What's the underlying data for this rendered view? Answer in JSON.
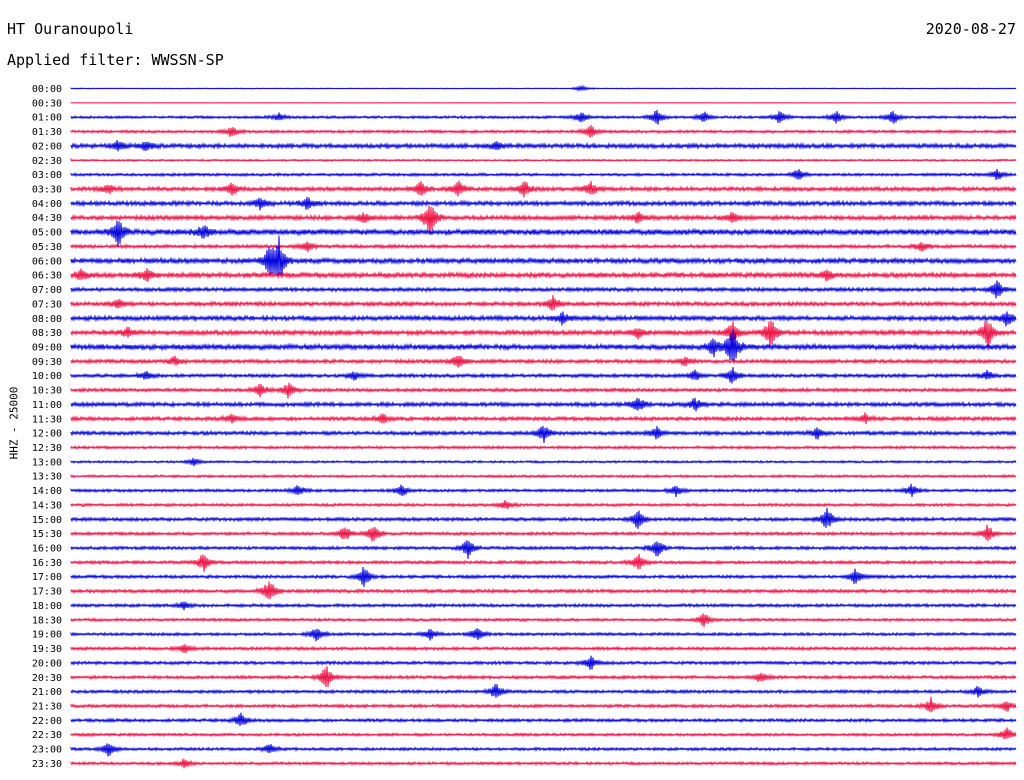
{
  "header": {
    "station": "HT Ouranoupoli",
    "date": "2020-08-27",
    "filter": "Applied filter: WWSSN-SP"
  },
  "chart_data": {
    "type": "line",
    "title": "HT Ouranoupoli",
    "subtitle": "Applied filter: WWSSN-SP",
    "date": "2020-08-27",
    "ylabel": "HHZ - 25000",
    "colors": [
      "#0000dd",
      "#ee1144"
    ],
    "row_labels": [
      "00:00",
      "00:30",
      "01:00",
      "01:30",
      "02:00",
      "02:30",
      "03:00",
      "03:30",
      "04:00",
      "04:30",
      "05:00",
      "05:30",
      "06:00",
      "06:30",
      "07:00",
      "07:30",
      "08:00",
      "08:30",
      "09:00",
      "09:30",
      "10:00",
      "10:30",
      "11:00",
      "11:30",
      "12:00",
      "12:30",
      "13:00",
      "13:30",
      "14:00",
      "14:30",
      "15:00",
      "15:30",
      "16:00",
      "16:30",
      "17:00",
      "17:30",
      "18:00",
      "18:30",
      "19:00",
      "19:30",
      "20:00",
      "20:30",
      "21:00",
      "21:30",
      "22:00",
      "22:30",
      "23:00",
      "23:30"
    ],
    "noise_level": [
      0.3,
      0.1,
      0.8,
      0.9,
      1.4,
      0.6,
      0.9,
      1.3,
      1.4,
      1.4,
      1.8,
      1.1,
      1.6,
      1.6,
      1.2,
      1.3,
      1.5,
      1.5,
      1.7,
      1.2,
      1.1,
      1.1,
      1.3,
      1.2,
      1.2,
      0.9,
      0.7,
      0.8,
      0.9,
      0.9,
      1.1,
      1.0,
      1.0,
      1.0,
      1.0,
      1.1,
      1.0,
      0.9,
      0.9,
      1.0,
      1.0,
      1.0,
      1.0,
      1.0,
      1.0,
      0.9,
      0.9,
      0.9
    ],
    "events": [
      [
        [
          0.54,
          3
        ]
      ],
      [],
      [
        [
          0.22,
          4
        ],
        [
          0.54,
          6
        ],
        [
          0.62,
          8
        ],
        [
          0.67,
          6
        ],
        [
          0.75,
          7
        ],
        [
          0.81,
          8
        ],
        [
          0.87,
          8
        ]
      ],
      [
        [
          0.17,
          6
        ],
        [
          0.55,
          7
        ]
      ],
      [
        [
          0.05,
          6
        ],
        [
          0.08,
          5
        ],
        [
          0.45,
          4
        ]
      ],
      [],
      [
        [
          0.77,
          7
        ],
        [
          0.98,
          6
        ]
      ],
      [
        [
          0.04,
          5
        ],
        [
          0.17,
          7
        ],
        [
          0.37,
          8
        ],
        [
          0.41,
          9
        ],
        [
          0.48,
          9
        ],
        [
          0.55,
          7
        ]
      ],
      [
        [
          0.2,
          6
        ],
        [
          0.25,
          7
        ]
      ],
      [
        [
          0.31,
          6
        ],
        [
          0.38,
          20
        ],
        [
          0.6,
          6
        ],
        [
          0.7,
          6
        ]
      ],
      [
        [
          0.05,
          6
        ],
        [
          0.05,
          9
        ],
        [
          0.14,
          8
        ]
      ],
      [
        [
          0.25,
          6
        ],
        [
          0.9,
          6
        ]
      ],
      [
        [
          0.21,
          17
        ],
        [
          0.22,
          22
        ]
      ],
      [
        [
          0.01,
          6
        ],
        [
          0.08,
          7
        ],
        [
          0.8,
          6
        ]
      ],
      [
        [
          0.98,
          10
        ]
      ],
      [
        [
          0.05,
          5
        ],
        [
          0.51,
          8
        ]
      ],
      [
        [
          0.52,
          7
        ],
        [
          0.99,
          9
        ]
      ],
      [
        [
          0.06,
          5
        ],
        [
          0.6,
          6
        ],
        [
          0.7,
          12
        ],
        [
          0.74,
          16
        ],
        [
          0.97,
          18
        ]
      ],
      [
        [
          0.7,
          22
        ],
        [
          0.68,
          10
        ]
      ],
      [
        [
          0.11,
          5
        ],
        [
          0.41,
          8
        ],
        [
          0.65,
          5
        ]
      ],
      [
        [
          0.08,
          5
        ],
        [
          0.3,
          5
        ],
        [
          0.66,
          6
        ],
        [
          0.7,
          10
        ],
        [
          0.97,
          5
        ]
      ],
      [
        [
          0.2,
          8
        ],
        [
          0.23,
          8
        ]
      ],
      [
        [
          0.6,
          8
        ],
        [
          0.66,
          7
        ]
      ],
      [
        [
          0.17,
          5
        ],
        [
          0.33,
          5
        ],
        [
          0.84,
          5
        ]
      ],
      [
        [
          0.5,
          10
        ],
        [
          0.62,
          7
        ],
        [
          0.79,
          6
        ]
      ],
      [],
      [
        [
          0.13,
          4
        ]
      ],
      [],
      [
        [
          0.24,
          6
        ],
        [
          0.35,
          7
        ],
        [
          0.64,
          6
        ],
        [
          0.89,
          7
        ]
      ],
      [
        [
          0.46,
          5
        ]
      ],
      [
        [
          0.6,
          11
        ],
        [
          0.8,
          12
        ]
      ],
      [
        [
          0.29,
          8
        ],
        [
          0.32,
          10
        ],
        [
          0.97,
          9
        ]
      ],
      [
        [
          0.42,
          11
        ],
        [
          0.62,
          11
        ]
      ],
      [
        [
          0.14,
          10
        ],
        [
          0.6,
          9
        ]
      ],
      [
        [
          0.31,
          11
        ],
        [
          0.83,
          9
        ]
      ],
      [
        [
          0.21,
          13
        ]
      ],
      [
        [
          0.12,
          4
        ]
      ],
      [
        [
          0.67,
          8
        ]
      ],
      [
        [
          0.26,
          8
        ],
        [
          0.38,
          6
        ],
        [
          0.43,
          7
        ]
      ],
      [
        [
          0.12,
          5
        ]
      ],
      [
        [
          0.55,
          7
        ]
      ],
      [
        [
          0.27,
          14
        ],
        [
          0.73,
          6
        ]
      ],
      [
        [
          0.45,
          9
        ],
        [
          0.96,
          6
        ]
      ],
      [
        [
          0.91,
          9
        ],
        [
          0.99,
          6
        ]
      ],
      [
        [
          0.18,
          8
        ]
      ],
      [
        [
          0.99,
          8
        ]
      ],
      [
        [
          0.04,
          8
        ],
        [
          0.21,
          6
        ]
      ],
      [
        [
          0.12,
          5
        ]
      ]
    ]
  }
}
